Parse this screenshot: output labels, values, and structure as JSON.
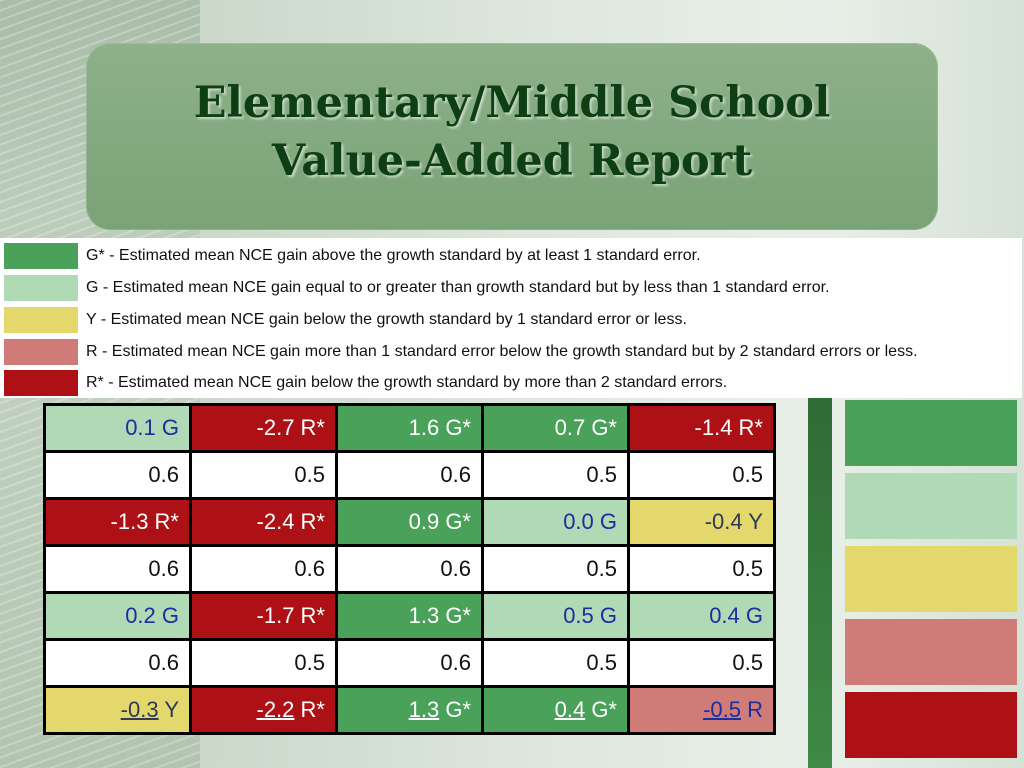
{
  "title": {
    "line1": "Elementary/Middle School",
    "line2": "Value-Added Report"
  },
  "colors": {
    "G_star": "#4aa15a",
    "G": "#b0d9b5",
    "Y": "#e4d76b",
    "R": "#cf7b78",
    "R_star": "#ad1116"
  },
  "legend": [
    {
      "code": "G_star",
      "text": "G* - Estimated mean NCE gain above the growth standard by at least 1 standard error."
    },
    {
      "code": "G",
      "text": "G - Estimated mean NCE gain equal to or greater than growth standard but by less than 1 standard error."
    },
    {
      "code": "Y",
      "text": "Y - Estimated mean NCE gain below the growth standard by 1 standard error or less."
    },
    {
      "code": "R",
      "text": "R - Estimated mean NCE gain more than 1 standard error below the growth standard but by 2 standard errors or less."
    },
    {
      "code": "R_star",
      "text": "R* - Estimated mean NCE gain below the growth standard by more than 2 standard errors."
    }
  ],
  "table": [
    [
      {
        "value": "0.1 G",
        "code": "G"
      },
      {
        "value": "-2.7 R*",
        "code": "R_star"
      },
      {
        "value": "1.6 G*",
        "code": "G_star"
      },
      {
        "value": "0.7 G*",
        "code": "G_star"
      },
      {
        "value": "-1.4 R*",
        "code": "R_star"
      }
    ],
    [
      {
        "value": "0.6",
        "code": "W"
      },
      {
        "value": "0.5",
        "code": "W"
      },
      {
        "value": "0.6",
        "code": "W"
      },
      {
        "value": "0.5",
        "code": "W"
      },
      {
        "value": "0.5",
        "code": "W"
      }
    ],
    [
      {
        "value": "-1.3 R*",
        "code": "R_star"
      },
      {
        "value": "-2.4 R*",
        "code": "R_star"
      },
      {
        "value": "0.9 G*",
        "code": "G_star"
      },
      {
        "value": "0.0 G",
        "code": "G"
      },
      {
        "value": "-0.4 Y",
        "code": "Y"
      }
    ],
    [
      {
        "value": "0.6",
        "code": "W"
      },
      {
        "value": "0.6",
        "code": "W"
      },
      {
        "value": "0.6",
        "code": "W"
      },
      {
        "value": "0.5",
        "code": "W"
      },
      {
        "value": "0.5",
        "code": "W"
      }
    ],
    [
      {
        "value": "0.2 G",
        "code": "G"
      },
      {
        "value": "-1.7 R*",
        "code": "R_star"
      },
      {
        "value": "1.3 G*",
        "code": "G_star"
      },
      {
        "value": "0.5 G",
        "code": "G"
      },
      {
        "value": "0.4 G",
        "code": "G"
      }
    ],
    [
      {
        "value": "0.6",
        "code": "W"
      },
      {
        "value": "0.5",
        "code": "W"
      },
      {
        "value": "0.6",
        "code": "W"
      },
      {
        "value": "0.5",
        "code": "W"
      },
      {
        "value": "0.5",
        "code": "W"
      }
    ],
    [
      {
        "num": "-0.3",
        "grade": "Y",
        "code": "Y"
      },
      {
        "num": "-2.2",
        "grade": "R*",
        "code": "R_star"
      },
      {
        "num": "1.3",
        "grade": "G*",
        "code": "G_star"
      },
      {
        "num": "0.4",
        "grade": "G*",
        "code": "G_star"
      },
      {
        "num": "-0.5",
        "grade": "R",
        "code": "R"
      }
    ]
  ],
  "side_swatches": [
    "G_star",
    "G",
    "Y",
    "R",
    "R_star"
  ]
}
